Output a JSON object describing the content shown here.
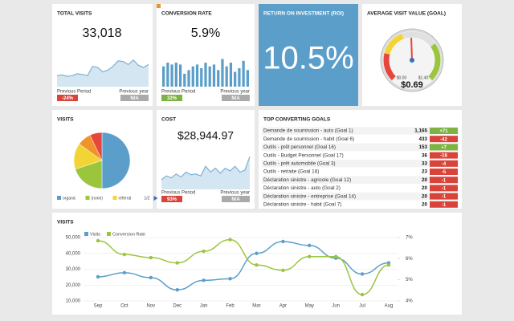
{
  "widgets": {
    "total_visits": {
      "title": "TOTAL VISITS",
      "value": "33,018",
      "sparkline": [
        30,
        32,
        28,
        30,
        35,
        33,
        30,
        55,
        52,
        40,
        45,
        55,
        70,
        68,
        60,
        72,
        58,
        52,
        60
      ],
      "previous_period_label": "Previous Period",
      "previous_period": "-24%",
      "previous_period_color": "#d9433a",
      "previous_year_label": "Previous year",
      "previous_year": "N/A",
      "previous_year_color": "#aaaaaa"
    },
    "conversion_rate": {
      "title": "CONVERSION RATE",
      "value": "5.9%",
      "bars": [
        55,
        65,
        60,
        65,
        60,
        35,
        45,
        55,
        60,
        50,
        65,
        55,
        60,
        45,
        75,
        55,
        65,
        40,
        50,
        70,
        45
      ],
      "previous_period_label": "Previous Period",
      "previous_period": "32%",
      "previous_period_color": "#7cb342",
      "previous_year_label": "Previous year",
      "previous_year": "N/A",
      "previous_year_color": "#aaaaaa"
    },
    "roi": {
      "title": "RETURN ON INVESTMENT (ROI)",
      "value": "10.5%"
    },
    "avg_visit_value": {
      "title": "AVERAGE VISIT VALUE (GOAL)",
      "value": 0.69,
      "value_label": "$0.69",
      "min": 0,
      "min_label": "$0.00",
      "max": 1.4,
      "max_label": "$1.40"
    },
    "visits_pie": {
      "title": "VISITS",
      "pager": "1/2",
      "slices": [
        {
          "name": "organic",
          "color": "#5b9ec9",
          "value": 50
        },
        {
          "name": "(none)",
          "color": "#9bc53d",
          "value": 20
        },
        {
          "name": "referral",
          "color": "#f2d535",
          "value": 15
        },
        {
          "name": null,
          "color": "#f0932b",
          "value": 8
        },
        {
          "name": null,
          "color": "#e8453c",
          "value": 7
        }
      ]
    },
    "cost": {
      "title": "COST",
      "value": "$28,944.97",
      "sparkline": [
        25,
        35,
        30,
        40,
        32,
        45,
        38,
        40,
        35,
        60,
        45,
        55,
        42,
        55,
        48,
        60,
        45,
        50,
        85
      ],
      "previous_period_label": "Previous Period",
      "previous_period": "93%",
      "previous_period_color": "#d9433a",
      "previous_year_label": "Previous year",
      "previous_year": "N/A",
      "previous_year_color": "#aaaaaa"
    },
    "goals": {
      "title": "TOP CONVERTING GOALS",
      "rows": [
        {
          "name": "Demande de soumission - auto (Goal 1)",
          "count": "1,165",
          "change": "+71",
          "color": "#7cb342"
        },
        {
          "name": "Demande de soumission - habit (Goal 6)",
          "count": "433",
          "change": "-42",
          "color": "#d9433a"
        },
        {
          "name": "Outils - prêt personnel (Goal 16)",
          "count": "153",
          "change": "+7",
          "color": "#7cb342"
        },
        {
          "name": "Outils - Budget Personnel (Goal 17)",
          "count": "36",
          "change": "-18",
          "color": "#d9433a"
        },
        {
          "name": "Outils - prêt automobile (Goal 3)",
          "count": "33",
          "change": "-4",
          "color": "#d9433a"
        },
        {
          "name": "Outils - retraite (Goal 18)",
          "count": "23",
          "change": "-5",
          "color": "#d9433a"
        },
        {
          "name": "Déclaration sinistre - agricole (Goal 12)",
          "count": "20",
          "change": "-1",
          "color": "#d9433a"
        },
        {
          "name": "Déclaration sinistre - auto (Goal 2)",
          "count": "20",
          "change": "-1",
          "color": "#d9433a"
        },
        {
          "name": "Déclaration sinistre - entreprise (Goal 14)",
          "count": "20",
          "change": "-1",
          "color": "#d9433a"
        },
        {
          "name": "Déclaration sinistre - habit (Goal 7)",
          "count": "20",
          "change": "-1",
          "color": "#d9433a"
        }
      ]
    },
    "visits_chart": {
      "type": "line",
      "title": "VISITS",
      "categories": [
        "Sep",
        "Oct",
        "Nov",
        "Dec",
        "Jan",
        "Feb",
        "Mar",
        "Apr",
        "May",
        "Jun",
        "Jul",
        "Aug"
      ],
      "series": [
        {
          "name": "Visits",
          "color": "#5b9ec9",
          "values": [
            25200,
            27800,
            24700,
            17000,
            23000,
            24000,
            40000,
            47500,
            45000,
            37000,
            27000,
            34000
          ]
        },
        {
          "name": "Conversion Rate",
          "color": "#9bc53d",
          "axis": "y2",
          "values": [
            6.85,
            6.2,
            6.05,
            5.8,
            6.35,
            6.9,
            5.7,
            5.45,
            6.1,
            6.1,
            4.3,
            5.7
          ]
        }
      ],
      "ylim": [
        10000,
        50000
      ],
      "yticks": [
        {
          "value": 10000,
          "label": "10,000"
        },
        {
          "value": 20000,
          "label": "20,000"
        },
        {
          "value": 30000,
          "label": "30,000"
        },
        {
          "value": 40000,
          "label": "40,000"
        },
        {
          "value": 50000,
          "label": "50,000"
        }
      ],
      "y2lim": [
        4,
        7
      ],
      "y2ticks": [
        {
          "value": 4,
          "label": "4%"
        },
        {
          "value": 5,
          "label": "5%"
        },
        {
          "value": 6,
          "label": "6%"
        },
        {
          "value": 7,
          "label": "7%"
        }
      ],
      "grid": true
    }
  }
}
